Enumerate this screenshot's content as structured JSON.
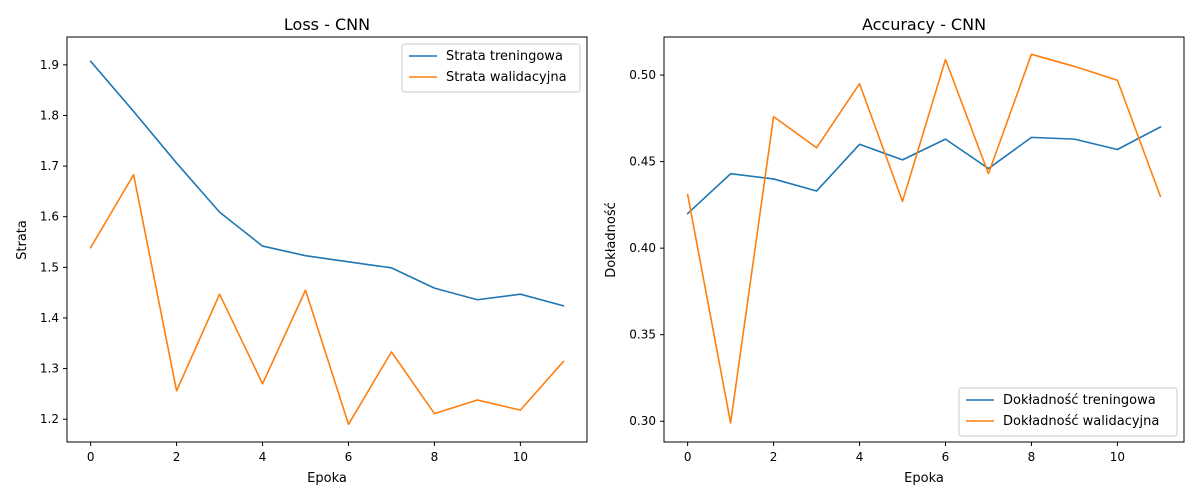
{
  "chart_data": [
    {
      "type": "line",
      "title": "Loss - CNN",
      "xlabel": "Epoka",
      "ylabel": "Strata",
      "x": [
        0,
        1,
        2,
        3,
        4,
        5,
        6,
        7,
        8,
        9,
        10,
        11
      ],
      "xlim": [
        -0.55,
        11.55
      ],
      "ylim": [
        1.155,
        1.955
      ],
      "xticks": [
        0,
        2,
        4,
        6,
        8,
        10
      ],
      "yticks": [
        1.2,
        1.3,
        1.4,
        1.5,
        1.6,
        1.7,
        1.8,
        1.9
      ],
      "xtick_labels": [
        "0",
        "2",
        "4",
        "6",
        "8",
        "10"
      ],
      "ytick_labels": [
        "1.2",
        "1.3",
        "1.4",
        "1.5",
        "1.6",
        "1.7",
        "1.8",
        "1.9"
      ],
      "grid": false,
      "legend_position": "top-right",
      "series": [
        {
          "name": "Strata treningowa",
          "color": "#1f77b4",
          "values": [
            1.907,
            1.808,
            1.706,
            1.609,
            1.542,
            1.523,
            1.511,
            1.499,
            1.459,
            1.436,
            1.447,
            1.424
          ]
        },
        {
          "name": "Strata walidacyjna",
          "color": "#ff7f0e",
          "values": [
            1.539,
            1.683,
            1.256,
            1.447,
            1.27,
            1.455,
            1.19,
            1.333,
            1.211,
            1.238,
            1.218,
            1.314
          ]
        }
      ]
    },
    {
      "type": "line",
      "title": "Accuracy - CNN",
      "xlabel": "Epoka",
      "ylabel": "Dokładność",
      "x": [
        0,
        1,
        2,
        3,
        4,
        5,
        6,
        7,
        8,
        9,
        10,
        11
      ],
      "xlim": [
        -0.55,
        11.55
      ],
      "ylim": [
        0.288,
        0.522
      ],
      "xticks": [
        0,
        2,
        4,
        6,
        8,
        10
      ],
      "yticks": [
        0.3,
        0.35,
        0.4,
        0.45,
        0.5
      ],
      "xtick_labels": [
        "0",
        "2",
        "4",
        "6",
        "8",
        "10"
      ],
      "ytick_labels": [
        "0.30",
        "0.35",
        "0.40",
        "0.45",
        "0.50"
      ],
      "grid": false,
      "legend_position": "bottom-right",
      "series": [
        {
          "name": "Dokładność treningowa",
          "color": "#1f77b4",
          "values": [
            0.42,
            0.443,
            0.44,
            0.433,
            0.46,
            0.451,
            0.463,
            0.446,
            0.464,
            0.463,
            0.457,
            0.47
          ]
        },
        {
          "name": "Dokładność walidacyjna",
          "color": "#ff7f0e",
          "values": [
            0.431,
            0.299,
            0.476,
            0.458,
            0.495,
            0.427,
            0.509,
            0.443,
            0.512,
            0.505,
            0.497,
            0.43
          ]
        }
      ]
    }
  ]
}
